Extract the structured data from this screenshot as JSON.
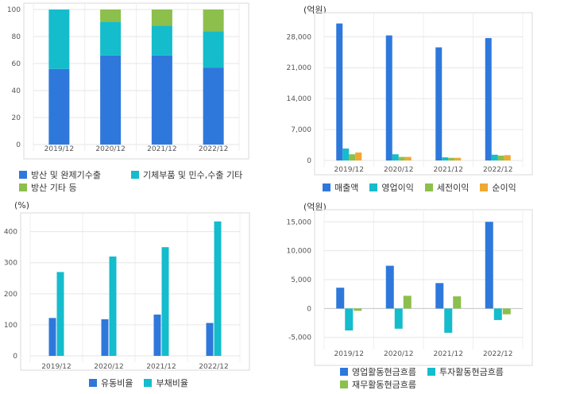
{
  "chart_data": [
    {
      "id": "revenue_mix",
      "type": "bar",
      "stacked": true,
      "unit": "",
      "categories": [
        "2019/12",
        "2020/12",
        "2021/12",
        "2022/12"
      ],
      "series": [
        {
          "name": "방산 및 완제기수출",
          "color": "#2e78dc",
          "values": [
            56,
            66,
            66,
            57
          ]
        },
        {
          "name": "기체부품 및 민수,수출 기타",
          "color": "#14bccc",
          "values": [
            44,
            25,
            22,
            27
          ]
        },
        {
          "name": "방산 기타 등",
          "color": "#8cbf4b",
          "values": [
            0,
            9,
            12,
            16
          ]
        }
      ],
      "ylim": [
        0,
        100
      ],
      "yticks": [
        "0",
        "20",
        "40",
        "60",
        "80",
        "100"
      ],
      "grid": true,
      "legend": "bottom"
    },
    {
      "id": "profit",
      "type": "bar",
      "unit": "(억원)",
      "categories": [
        "2019/12",
        "2020/12",
        "2021/12",
        "2022/12"
      ],
      "series": [
        {
          "name": "매출액",
          "color": "#2e78dc",
          "values": [
            31000,
            28300,
            25600,
            27700
          ]
        },
        {
          "name": "영업이익",
          "color": "#14bccc",
          "values": [
            2700,
            1400,
            700,
            1300
          ]
        },
        {
          "name": "세전이익",
          "color": "#8cbf4b",
          "values": [
            1400,
            800,
            600,
            1100
          ]
        },
        {
          "name": "순이익",
          "color": "#f0a830",
          "values": [
            1800,
            800,
            600,
            1200
          ]
        }
      ],
      "ylim": [
        0,
        32000
      ],
      "yticks": [
        "0",
        "7,000",
        "14,000",
        "21,000",
        "28,000"
      ],
      "grid": true,
      "legend": "bottom"
    },
    {
      "id": "ratios",
      "type": "bar",
      "unit": "(%)",
      "categories": [
        "2019/12",
        "2020/12",
        "2021/12",
        "2022/12"
      ],
      "series": [
        {
          "name": "유동비율",
          "color": "#2e78dc",
          "values": [
            122,
            118,
            133,
            106
          ]
        },
        {
          "name": "부채비율",
          "color": "#14bccc",
          "values": [
            270,
            320,
            350,
            433
          ]
        }
      ],
      "ylim": [
        0,
        440
      ],
      "yticks": [
        "0",
        "100",
        "200",
        "300",
        "400"
      ],
      "grid": true,
      "legend": "bottom"
    },
    {
      "id": "cashflow",
      "type": "bar",
      "unit": "(억원)",
      "categories": [
        "2019/12",
        "2020/12",
        "2021/12",
        "2022/12"
      ],
      "series": [
        {
          "name": "영업활동현금흐름",
          "color": "#2e78dc",
          "values": [
            3600,
            7400,
            4400,
            15000
          ]
        },
        {
          "name": "투자활동현금흐름",
          "color": "#14bccc",
          "values": [
            -3800,
            -3500,
            -4200,
            -2000
          ]
        },
        {
          "name": "재무활동현금흐름",
          "color": "#8cbf4b",
          "values": [
            -400,
            2200,
            2100,
            -1000
          ]
        }
      ],
      "ylim": [
        -6000,
        16000
      ],
      "yticks": [
        "-5,000",
        "0",
        "5,000",
        "10,000",
        "15,000"
      ],
      "grid": true,
      "legend": "bottom"
    }
  ]
}
